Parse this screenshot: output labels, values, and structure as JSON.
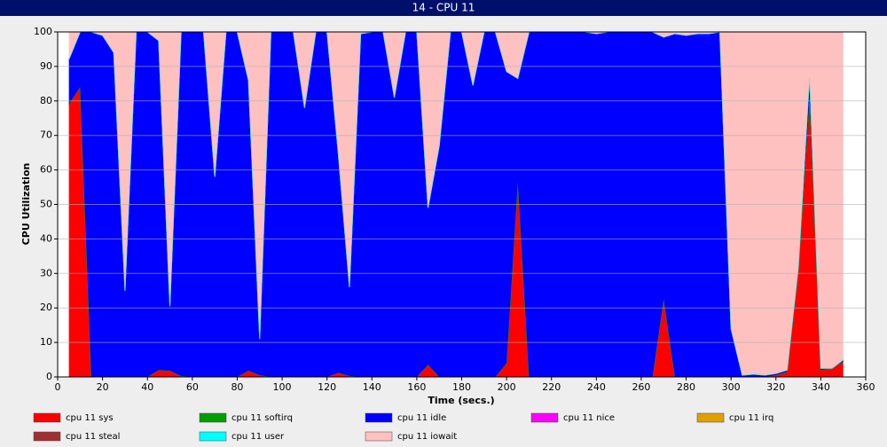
{
  "chart_data": {
    "type": "stacked-area",
    "title": "14 - CPU 11",
    "x_label": "Time (secs.)",
    "y_label": "CPU Utilization",
    "x": [
      5,
      10,
      15,
      20,
      25,
      30,
      35,
      40,
      45,
      50,
      55,
      60,
      65,
      70,
      75,
      80,
      85,
      90,
      95,
      100,
      105,
      110,
      115,
      120,
      125,
      130,
      135,
      140,
      145,
      150,
      155,
      160,
      165,
      170,
      175,
      180,
      185,
      190,
      195,
      200,
      205,
      210,
      215,
      220,
      225,
      230,
      235,
      240,
      245,
      250,
      255,
      260,
      265,
      270,
      275,
      280,
      285,
      290,
      295,
      300,
      305,
      310,
      315,
      320,
      325,
      330,
      335,
      340,
      345,
      350
    ],
    "xlim": [
      0,
      360
    ],
    "xticks": [
      0,
      20,
      40,
      60,
      80,
      100,
      120,
      140,
      160,
      180,
      200,
      220,
      240,
      260,
      280,
      300,
      320,
      340,
      360
    ],
    "ylim": [
      0,
      100
    ],
    "yticks": [
      0,
      10,
      20,
      30,
      40,
      50,
      60,
      70,
      80,
      90,
      100
    ],
    "grid": true,
    "series": [
      {
        "name": "cpu 11 sys",
        "color": "#ff0000",
        "values": [
          79,
          84,
          0,
          0,
          0,
          0,
          0,
          0,
          2,
          1.8,
          0.3,
          0,
          0,
          0,
          0,
          0,
          1.8,
          0.5,
          0,
          0,
          0,
          0,
          0,
          0,
          1.2,
          0.3,
          0,
          0,
          0,
          0,
          0,
          0,
          3.5,
          0,
          0,
          0,
          0,
          0,
          0,
          4,
          56.5,
          0,
          0,
          0,
          0,
          0,
          0,
          0,
          0,
          0,
          0,
          0,
          0,
          22.5,
          0,
          0,
          0,
          0,
          0,
          0,
          0,
          0,
          0,
          0.5,
          1.5,
          31,
          81,
          2,
          2.5,
          4.5
        ]
      },
      {
        "name": "cpu 11 softirq",
        "color": "#00a000",
        "values": [
          0,
          0,
          0,
          0,
          0,
          0,
          0,
          0,
          0,
          0,
          0,
          0,
          0,
          0,
          0,
          0,
          0,
          0,
          0,
          0,
          0,
          0,
          0,
          0,
          0,
          0,
          0,
          0,
          0,
          0,
          0,
          0,
          0,
          0,
          0,
          0,
          0,
          0,
          0,
          0,
          0,
          0,
          0,
          0,
          0,
          0,
          0,
          0,
          0,
          0,
          0,
          0,
          0,
          0,
          0,
          0,
          0,
          0,
          0,
          0,
          0,
          0,
          0,
          0,
          0,
          0,
          0,
          0,
          0,
          0
        ]
      },
      {
        "name": "cpu 11 idle",
        "color": "#0000ff",
        "values": [
          13,
          16,
          100,
          99,
          94,
          25,
          100,
          100,
          95.5,
          18.7,
          99.7,
          100,
          100,
          58,
          100,
          100,
          84.2,
          10.5,
          100,
          100,
          100,
          78,
          100,
          100,
          63.8,
          25.7,
          99.5,
          100,
          100,
          81,
          100,
          100,
          45.5,
          67,
          100,
          100,
          84.5,
          100,
          100,
          84.5,
          30,
          100,
          100,
          100,
          100,
          100,
          100,
          99.5,
          100,
          100,
          100,
          100,
          100,
          76,
          99.5,
          99,
          99.5,
          99.5,
          100,
          14,
          0.5,
          0.8,
          0.5,
          0.5,
          0.5,
          1,
          6.5,
          0.5,
          0,
          0.5
        ]
      },
      {
        "name": "cpu 11 nice",
        "color": "#ff00ff",
        "values": [
          0,
          0,
          0,
          0,
          0,
          0,
          0,
          0,
          0,
          0,
          0,
          0,
          0,
          0,
          0,
          0,
          0,
          0,
          0,
          0,
          0,
          0,
          0,
          0,
          0,
          0,
          0,
          0,
          0,
          0,
          0,
          0,
          0,
          0,
          0,
          0,
          0,
          0,
          0,
          0,
          0,
          0,
          0,
          0,
          0,
          0,
          0,
          0,
          0,
          0,
          0,
          0,
          0,
          0,
          0,
          0,
          0,
          0,
          0,
          0,
          0,
          0,
          0,
          0,
          0,
          0,
          0,
          0,
          0,
          0
        ]
      },
      {
        "name": "cpu 11 irq",
        "color": "#e0a000",
        "values": [
          0,
          0,
          0,
          0,
          0,
          0,
          0,
          0,
          0,
          0,
          0,
          0,
          0,
          0,
          0,
          0,
          0,
          0,
          0,
          0,
          0,
          0,
          0,
          0,
          0,
          0,
          0,
          0,
          0,
          0,
          0,
          0,
          0,
          0,
          0,
          0,
          0,
          0,
          0,
          0,
          0,
          0,
          0,
          0,
          0,
          0,
          0,
          0,
          0,
          0,
          0,
          0,
          0,
          0,
          0,
          0,
          0,
          0,
          0,
          0,
          0,
          0,
          0,
          0,
          0,
          0,
          0,
          0,
          0,
          0
        ]
      },
      {
        "name": "cpu 11 steal",
        "color": "#a03030",
        "values": [
          0,
          0,
          0,
          0,
          0,
          0,
          0,
          0,
          0,
          0,
          0,
          0,
          0,
          0,
          0,
          0,
          0,
          0,
          0,
          0,
          0,
          0,
          0,
          0,
          0,
          0,
          0,
          0,
          0,
          0,
          0,
          0,
          0,
          0,
          0,
          0,
          0,
          0,
          0,
          0,
          0,
          0,
          0,
          0,
          0,
          0,
          0,
          0,
          0,
          0,
          0,
          0,
          0,
          0,
          0,
          0,
          0,
          0,
          0,
          0,
          0,
          0,
          0,
          0,
          0,
          0,
          0,
          0,
          0,
          0
        ]
      },
      {
        "name": "cpu 11 user",
        "color": "#00ffff",
        "values": [
          0,
          0,
          0,
          0,
          0,
          0,
          0,
          0,
          0,
          0,
          0,
          0,
          0,
          0,
          0,
          0,
          0,
          0,
          0,
          0,
          0,
          0,
          0,
          0,
          0,
          0,
          0,
          0,
          0,
          0,
          0,
          0,
          0,
          0,
          0,
          0,
          0,
          0,
          0,
          0,
          0,
          0,
          0,
          0,
          0,
          0,
          0,
          0,
          0,
          0,
          0,
          0,
          0,
          0,
          0,
          0,
          0,
          0,
          0,
          0,
          0,
          0,
          0,
          0,
          0,
          0,
          0,
          0,
          0,
          0
        ]
      },
      {
        "name": "cpu 11 iowait",
        "color": "#ffc0c0",
        "values": [
          8,
          0,
          0,
          1,
          6,
          75,
          0,
          0,
          2.5,
          79.5,
          0,
          0,
          0,
          42,
          0,
          0,
          14,
          89,
          0,
          0,
          0,
          22,
          0,
          0,
          35,
          74,
          0.5,
          0,
          0,
          19,
          0,
          0,
          51,
          33,
          0,
          0,
          15.5,
          0,
          0,
          11.5,
          13.5,
          0,
          0,
          0,
          0,
          0,
          0,
          0.5,
          0,
          0,
          0,
          0,
          0,
          1.5,
          0.5,
          1,
          0.5,
          0.5,
          0,
          86,
          99.5,
          99.2,
          99.5,
          99,
          98,
          68,
          12.5,
          97.5,
          97.5,
          95
        ]
      }
    ]
  }
}
